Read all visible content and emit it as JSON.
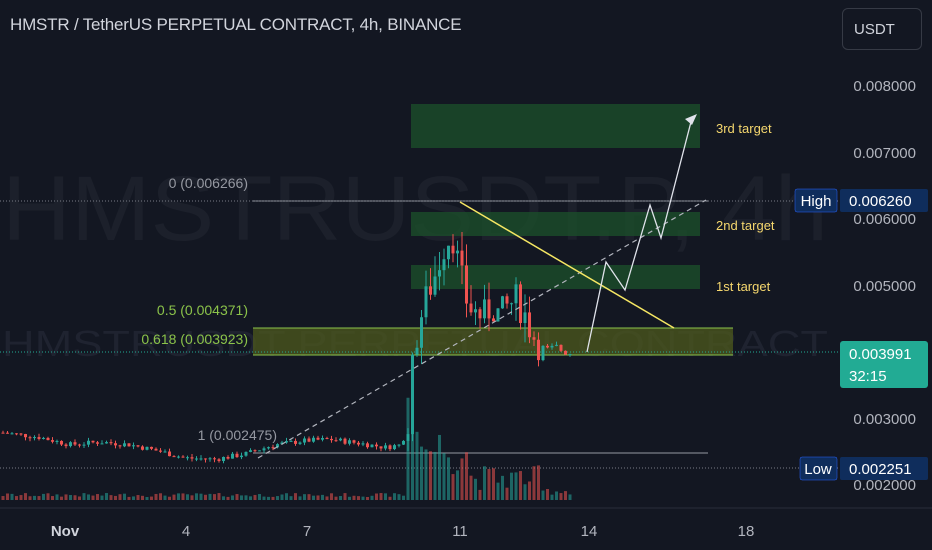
{
  "header": {
    "title": "HMSTR / TetherUS PERPETUAL CONTRACT, 4h, BINANCE",
    "currency_button": "USDT"
  },
  "watermark": {
    "symbol": "HMSTRUSDT.P, 4h",
    "description": "HMSTRUSDT PERPETUAL CONTRACT"
  },
  "price_axis": {
    "ticks": [
      "0.008000",
      "0.007000",
      "0.006000",
      "0.005000",
      "0.003000",
      "0.002000"
    ],
    "high_label": "High",
    "high_value": "0.006260",
    "current_value": "0.003991",
    "countdown": "32:15",
    "low_label": "Low",
    "low_value": "0.002251"
  },
  "time_axis": {
    "ticks": [
      "Nov",
      "4",
      "7",
      "11",
      "14",
      "18"
    ]
  },
  "fibonacci": {
    "levels": [
      {
        "label": "0 (0.006266)",
        "price": 0.006266,
        "color": "#9598a1"
      },
      {
        "label": "0.5 (0.004371)",
        "price": 0.004371,
        "color": "#8bc34a"
      },
      {
        "label": "0.618 (0.003923)",
        "price": 0.003923,
        "color": "#8bc34a"
      },
      {
        "label": "1 (0.002475)",
        "price": 0.002475,
        "color": "#9598a1"
      }
    ]
  },
  "targets": [
    {
      "label": "3rd target",
      "low": 0.0071,
      "high": 0.0077
    },
    {
      "label": "2nd target",
      "low": 0.00573,
      "high": 0.006
    },
    {
      "label": "1st target",
      "low": 0.00498,
      "high": 0.00529
    }
  ],
  "colors": {
    "background": "#131722",
    "up": "#26a69a",
    "down": "#ef5350",
    "target_zone": "#1b4d2b",
    "fib_zone": "#4d5a1c",
    "label_bg": "#0f2d5c",
    "current_bg": "#22ab94",
    "trendline": "#f5e663",
    "text": "#d1d4dc",
    "axis_text": "#b2b5be"
  },
  "chart_data": {
    "type": "candlestick",
    "title": "HMSTR / TetherUS PERPETUAL CONTRACT, 4h, BINANCE",
    "x_ticks": [
      "Nov",
      "4",
      "7",
      "11",
      "14",
      "18"
    ],
    "y_range": [
      0.0019,
      0.0088
    ],
    "high": 0.00626,
    "low": 0.002251,
    "last_price": 0.003991,
    "candles": [
      {
        "date": "Oct 31",
        "open": 0.00277,
        "high": 0.00279,
        "low": 0.00272,
        "close": 0.00275
      },
      {
        "date": "Nov 1",
        "open": 0.00275,
        "high": 0.00278,
        "low": 0.00265,
        "close": 0.00268
      },
      {
        "date": "Nov 2",
        "open": 0.00268,
        "high": 0.00274,
        "low": 0.0026,
        "close": 0.00265
      },
      {
        "date": "Nov 3",
        "open": 0.00265,
        "high": 0.00272,
        "low": 0.00258,
        "close": 0.00268
      },
      {
        "date": "Nov 4",
        "open": 0.00268,
        "high": 0.0027,
        "low": 0.00248,
        "close": 0.00252
      },
      {
        "date": "Nov 5",
        "open": 0.00252,
        "high": 0.00258,
        "low": 0.00238,
        "close": 0.00242
      },
      {
        "date": "Nov 6",
        "open": 0.00242,
        "high": 0.00262,
        "low": 0.00238,
        "close": 0.00256
      },
      {
        "date": "Nov 7",
        "open": 0.00256,
        "high": 0.00275,
        "low": 0.0025,
        "close": 0.00268
      },
      {
        "date": "Nov 8",
        "open": 0.00268,
        "high": 0.0028,
        "low": 0.00262,
        "close": 0.00266
      },
      {
        "date": "Nov 9",
        "open": 0.00266,
        "high": 0.00272,
        "low": 0.00258,
        "close": 0.00262
      },
      {
        "date": "Nov 10",
        "open": 0.00262,
        "high": 0.0062,
        "low": 0.00255,
        "close": 0.0047
      },
      {
        "date": "Nov 11",
        "open": 0.0047,
        "high": 0.00626,
        "low": 0.0043,
        "close": 0.0044
      },
      {
        "date": "Nov 12",
        "open": 0.0044,
        "high": 0.00575,
        "low": 0.00415,
        "close": 0.00455
      },
      {
        "date": "Nov 13",
        "open": 0.00455,
        "high": 0.00462,
        "low": 0.00385,
        "close": 0.00399
      }
    ],
    "annotations": [
      "3rd target",
      "2nd target",
      "1st target",
      "0 (0.006266)",
      "0.5 (0.004371)",
      "0.618 (0.003923)",
      "1 (0.002475)"
    ]
  }
}
